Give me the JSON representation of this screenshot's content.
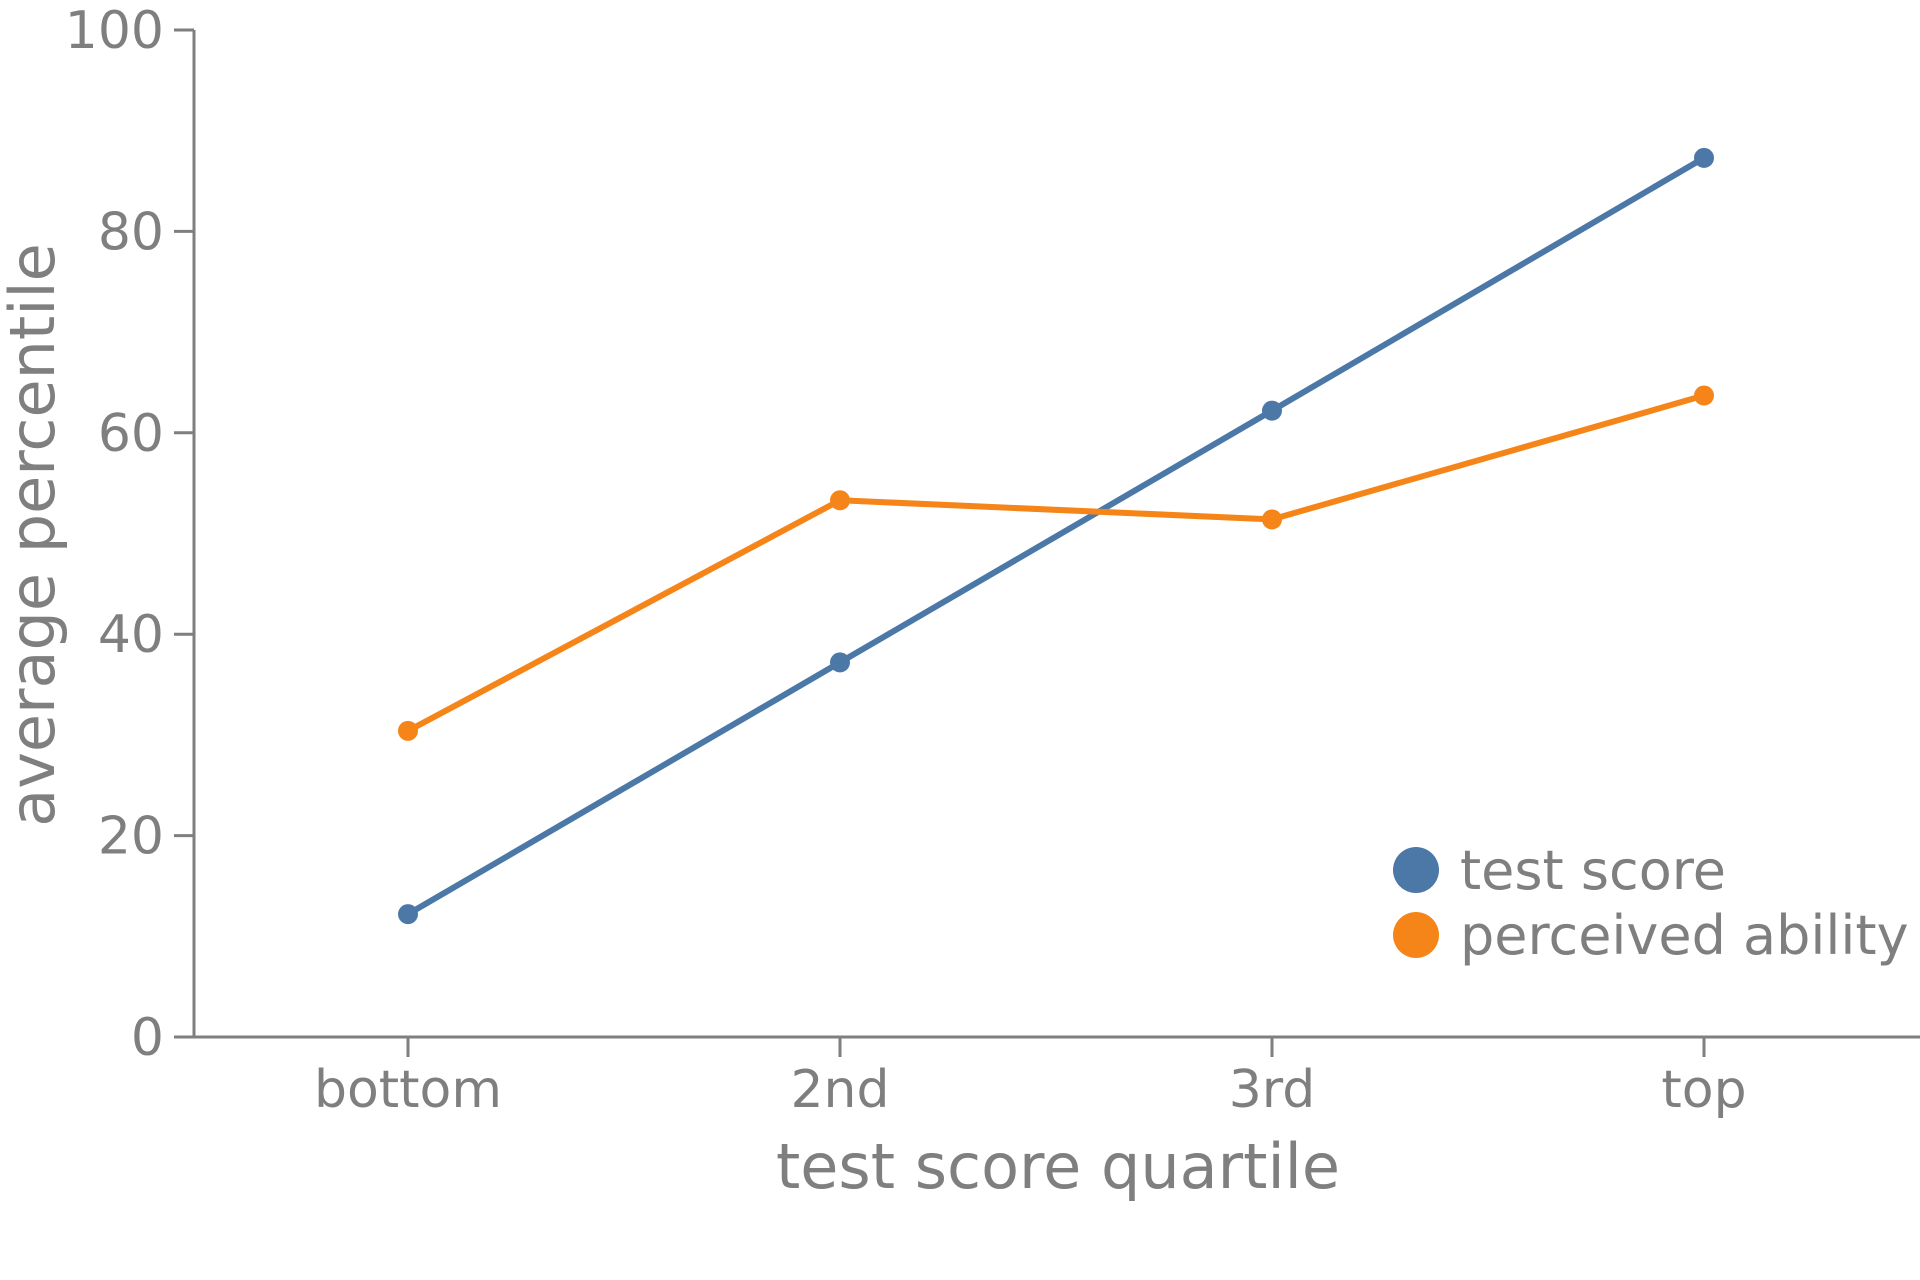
{
  "chart_data": {
    "type": "line",
    "title": "",
    "xlabel": "test score quartile",
    "ylabel": "average percentile",
    "categories": [
      "bottom",
      "2nd",
      "3rd",
      "top"
    ],
    "ylim": [
      0,
      100
    ],
    "yticks": [
      0,
      20,
      40,
      60,
      80,
      100
    ],
    "grid": false,
    "legend_position": "bottom-right",
    "series": [
      {
        "name": "test score",
        "color": "#4c78a8",
        "values": [
          12.2,
          37.2,
          62.2,
          87.3
        ]
      },
      {
        "name": "perceived ability",
        "color": "#f58518",
        "values": [
          30.4,
          53.3,
          51.4,
          63.7
        ]
      }
    ]
  }
}
